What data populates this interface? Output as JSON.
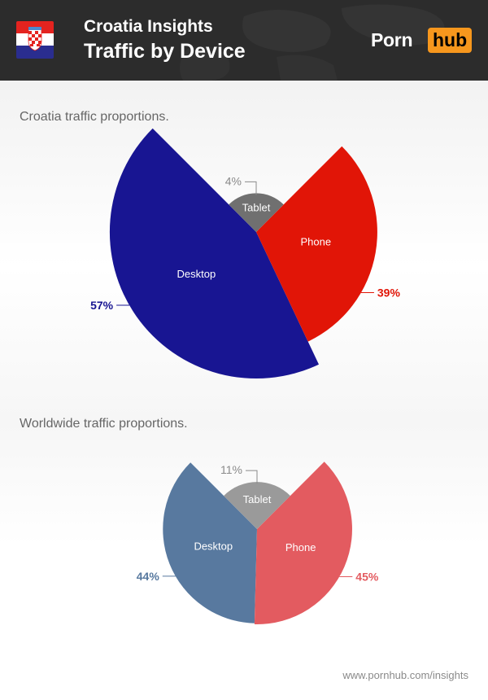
{
  "header": {
    "title": "Croatia Insights",
    "subtitle": "Traffic by Device",
    "logo_left": "Porn",
    "logo_right": "hub",
    "background_color": "#2c2c2c",
    "accent_color": "#f7971d",
    "flag_icon": "croatia-flag-icon"
  },
  "chart_data": [
    {
      "type": "pie",
      "title": "Croatia traffic proportions.",
      "categories": [
        "Desktop",
        "Phone",
        "Tablet"
      ],
      "values": [
        57,
        39,
        4
      ],
      "value_labels": [
        "57%",
        "39%",
        "4%"
      ],
      "colors": [
        "#181592",
        "#e11507",
        "#707070"
      ]
    },
    {
      "type": "pie",
      "title": "Worldwide traffic proportions.",
      "categories": [
        "Desktop",
        "Phone",
        "Tablet"
      ],
      "values": [
        44,
        45,
        11
      ],
      "value_labels": [
        "44%",
        "45%",
        "11%"
      ],
      "colors": [
        "#58799f",
        "#e35b60",
        "#9a9a9a"
      ]
    }
  ],
  "footer": {
    "url": "www.pornhub.com/insights"
  }
}
